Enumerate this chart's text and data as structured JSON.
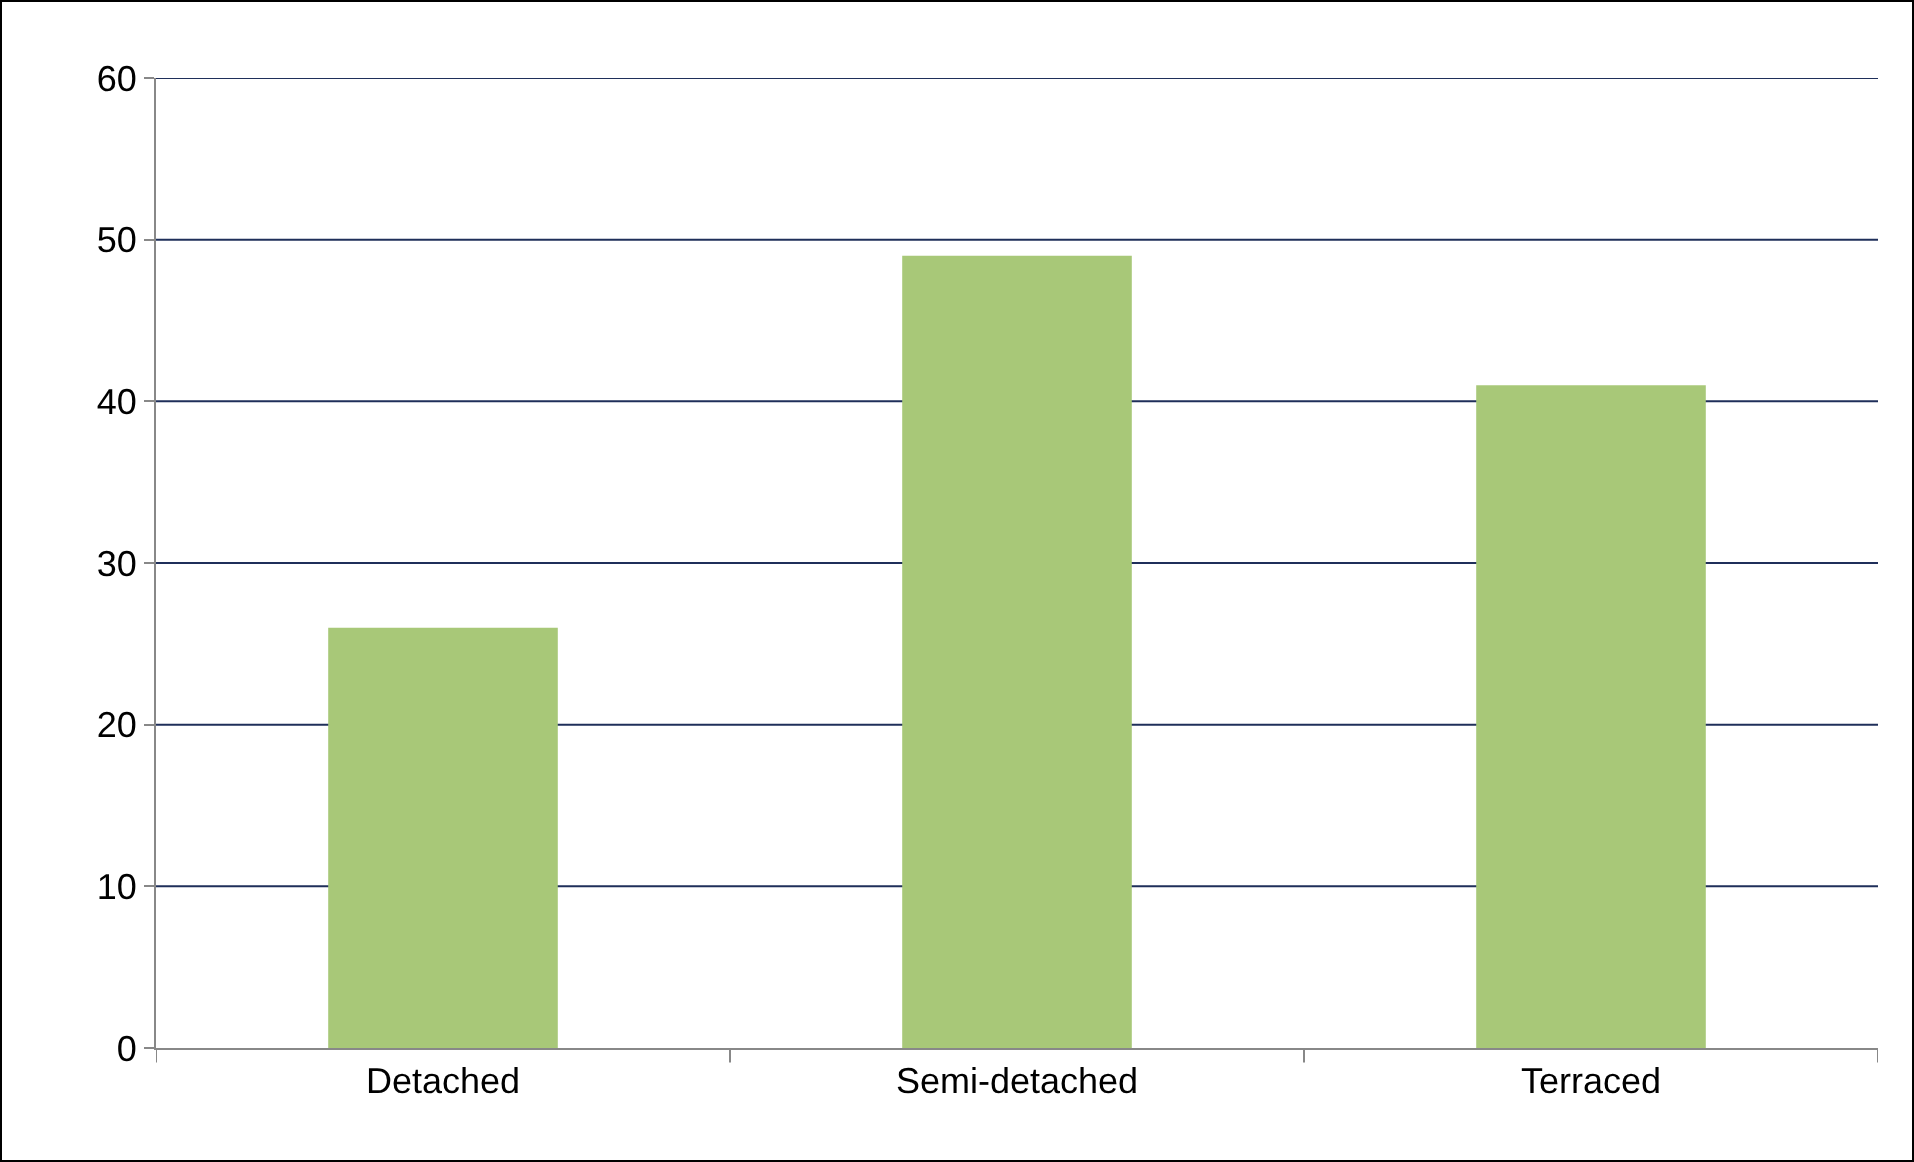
{
  "chart_data": {
    "type": "bar",
    "categories": [
      "Detached",
      "Semi-detached",
      "Terraced"
    ],
    "values": [
      26,
      49,
      41
    ],
    "color": "#a8c878",
    "ylim": [
      0,
      60
    ],
    "yticks": [
      0,
      10,
      20,
      30,
      40,
      50,
      60
    ],
    "grid": "y"
  }
}
